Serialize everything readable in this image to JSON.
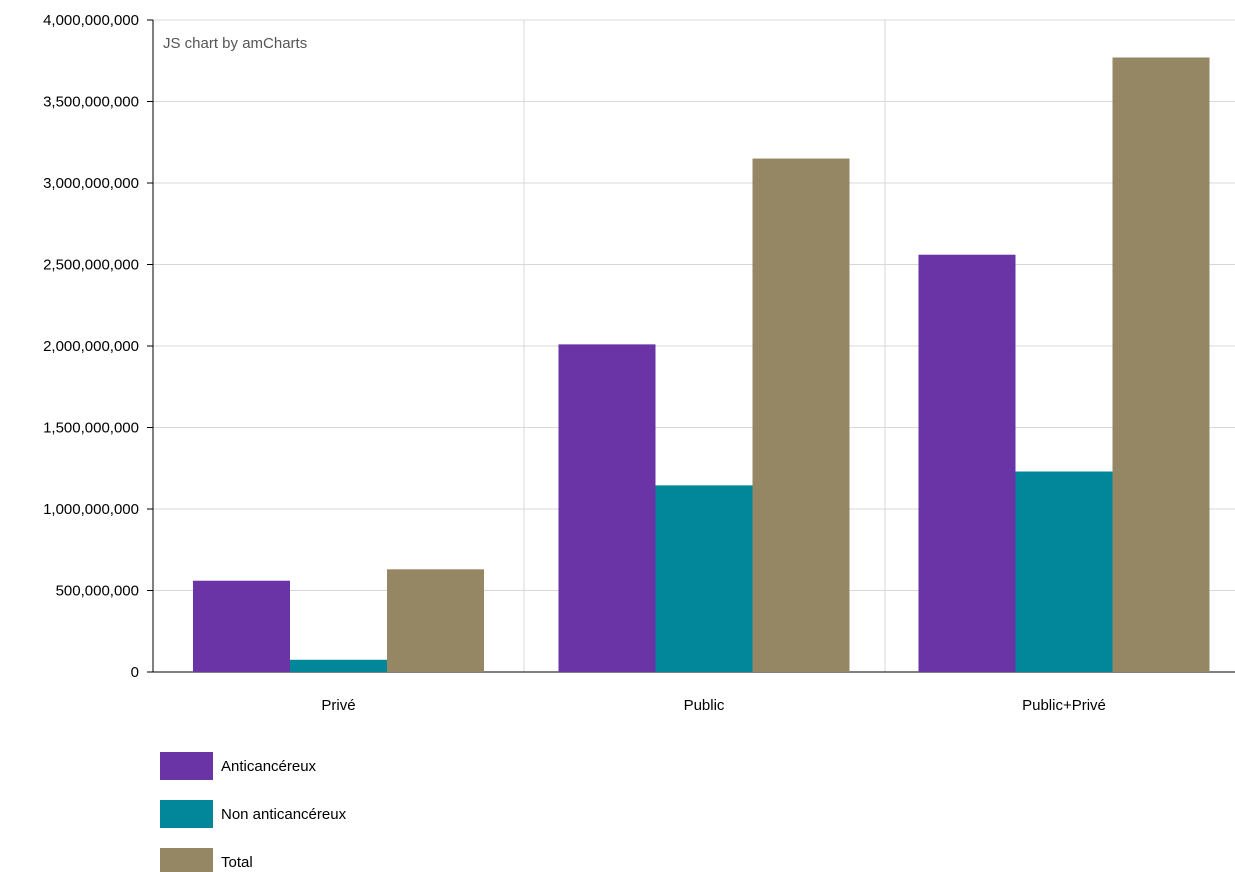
{
  "chart_data": {
    "type": "bar",
    "title": "",
    "xlabel": "",
    "ylabel": "",
    "credit": "JS chart by amCharts",
    "categories": [
      "Privé",
      "Public",
      "Public+Privé"
    ],
    "series": [
      {
        "name": "Anticancéreux",
        "color": "#6a34a6",
        "values": [
          560000000,
          2010000000,
          2560000000
        ]
      },
      {
        "name": "Non anticancéreux",
        "color": "#02869a",
        "values": [
          75000000,
          1145000000,
          1230000000
        ]
      },
      {
        "name": "Total",
        "color": "#958763",
        "values": [
          630000000,
          3150000000,
          3770000000
        ]
      }
    ],
    "ylim": [
      0,
      4000000000
    ],
    "yticks": [
      0,
      500000000,
      1000000000,
      1500000000,
      2000000000,
      2500000000,
      3000000000,
      3500000000,
      4000000000
    ],
    "ytick_labels": [
      "0",
      "500,000,000",
      "1,000,000,000",
      "1,500,000,000",
      "2,000,000,000",
      "2,500,000,000",
      "3,000,000,000",
      "3,500,000,000",
      "4,000,000,000"
    ],
    "grid": true,
    "legend_position": "bottom-left"
  }
}
